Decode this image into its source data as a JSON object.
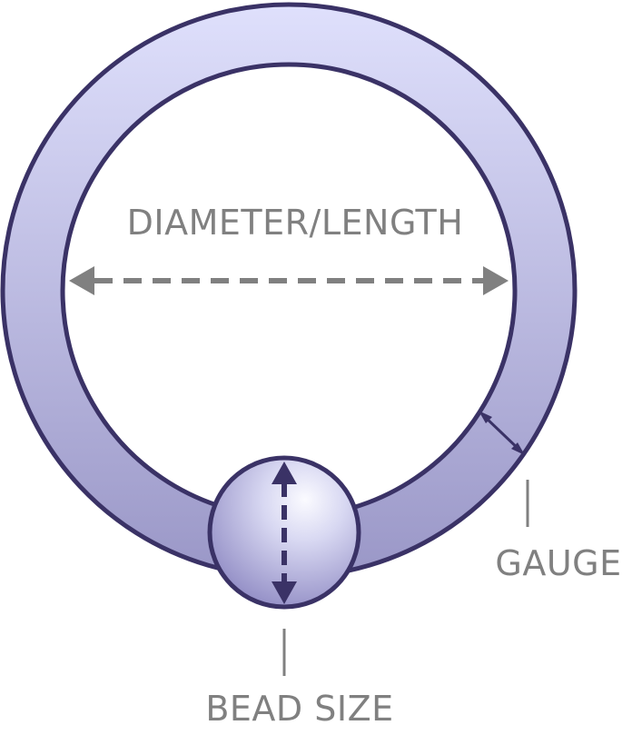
{
  "labels": {
    "diameter": "DIAMETER/LENGTH",
    "gauge": "GAUGE",
    "bead_size": "BEAD SIZE"
  },
  "colors": {
    "ring_gradient_top": "#dfe0fc",
    "ring_gradient_bottom": "#9a97c7",
    "outline": "#3a3266",
    "annotation_gray": "#808080",
    "bead_dark": "#8d88c2",
    "bead_light": "#fafaff"
  },
  "icons": {
    "ring": "captive-bead-ring",
    "bead": "bead-ball"
  }
}
